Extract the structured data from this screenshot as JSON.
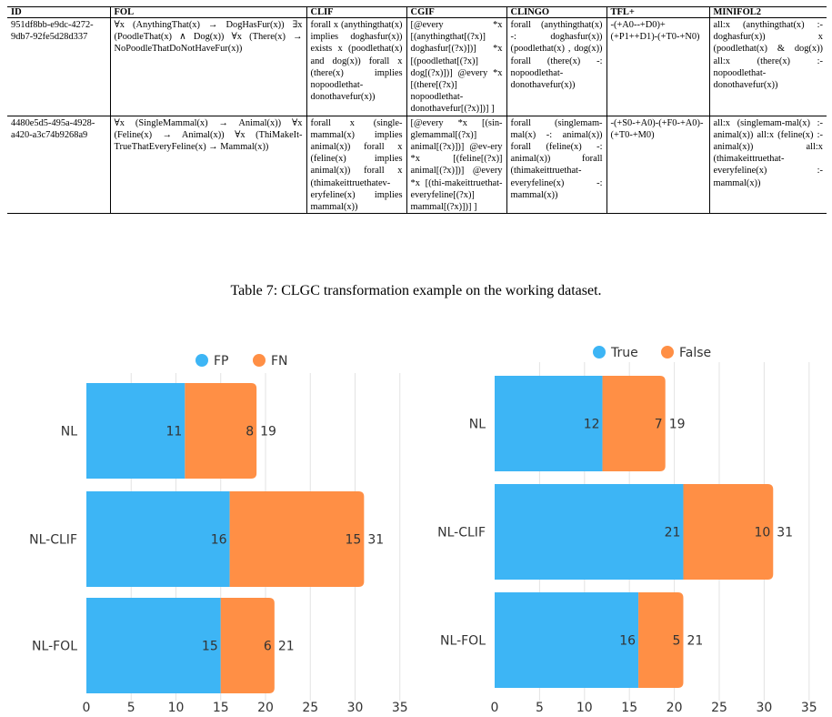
{
  "table": {
    "columns": [
      "ID",
      "FOL",
      "CLIF",
      "CGIF",
      "CLINGO",
      "TFL+",
      "MINIFOL2"
    ],
    "rows": [
      [
        "951df8bb-e9dc-4272-9db7-92fe5d28d337",
        "∀x (AnythingThat(x) → DogHasFur(x)) ∃x (PoodleThat(x) ∧ Dog(x)) ∀x (There(x) → NoPoodleThatDoNotHaveFur(x))",
        "forall x (anythingthat(x) implies doghasfur(x)) exists x (poodlethat(x) and dog(x)) forall x (there(x) implies nopoodlethat-donothavefur(x))",
        "[@every *x [(anythingthat[(?x)] doghasfur[(?x)])] *x [(poodlethat[(?x)] dog[(?x)])] @every *x [(there[(?x)] nopoodlethat-donothavefur[(?x)])] ]",
        "forall (anythingthat(x) -: doghasfur(x)) (poodlethat(x) , dog(x)) forall (there(x) -: nopoodlethat-donothavefur(x))",
        "-(+A0--+D0)+(+P1++D1)-(+T0-+N0)",
        "all:x (anythingthat(x) :- doghasfur(x)) x (poodlethat(x) & dog(x)) all:x (there(x) :- nopoodlethat-donothavefur(x))"
      ],
      [
        "4480e5d5-495a-4928-a420-a3c74b9268a9",
        "∀x (SingleMammal(x) → Animal(x)) ∀x (Feline(x) → Animal(x)) ∀x (ThiMakeIt-TrueThatEveryFeline(x) → Mammal(x))",
        "forall x (single-mammal(x) implies animal(x)) forall x (feline(x) implies animal(x)) forall x (thimakeittruethatev-eryfeline(x) implies mammal(x))",
        "[@every *x [(sin-glemammal[(?x)] animal[(?x)])] @ev-ery *x [(feline[(?x)] animal[(?x)])] @every *x [(thi-makeittruethat-everyfeline[(?x)] mammal[(?x)])] ]",
        "forall (singlemam-mal(x) -: animal(x)) forall (feline(x) -: animal(x)) forall (thimakeittruethat-everyfeline(x) -: mammal(x))",
        "-(+S0-+A0)-(+F0-+A0)-(+T0-+M0)",
        "all:x (singlemam-mal(x) :- animal(x)) all:x (feline(x) :- animal(x)) all:x (thimakeittruethat-everyfeline(x) :- mammal(x))"
      ]
    ]
  },
  "caption": "Table 7: CLGC transformation example on the working dataset.",
  "chart_data": [
    {
      "type": "bar",
      "orientation": "horizontal",
      "stacked": true,
      "categories": [
        "NL",
        "NL-CLIF",
        "NL-FOL"
      ],
      "series": [
        {
          "name": "FP",
          "values": [
            11,
            16,
            15
          ],
          "color": "#3db5f5"
        },
        {
          "name": "FN",
          "values": [
            8,
            15,
            6
          ],
          "color": "#ff8f45"
        }
      ],
      "totals": [
        19,
        31,
        21
      ],
      "xlim": [
        0,
        35
      ],
      "xticks": [
        0,
        5,
        10,
        15,
        20,
        25,
        30,
        35
      ],
      "grid": true,
      "legend": "top"
    },
    {
      "type": "bar",
      "orientation": "horizontal",
      "stacked": true,
      "categories": [
        "NL",
        "NL-CLIF",
        "NL-FOL"
      ],
      "series": [
        {
          "name": "True",
          "values": [
            12,
            21,
            16
          ],
          "color": "#3db5f5"
        },
        {
          "name": "False",
          "values": [
            7,
            10,
            5
          ],
          "color": "#ff8f45"
        }
      ],
      "totals": [
        19,
        31,
        21
      ],
      "xlim": [
        0,
        35
      ],
      "xticks": [
        0,
        5,
        10,
        15,
        20,
        25,
        30,
        35
      ],
      "grid": true,
      "legend": "top"
    }
  ]
}
